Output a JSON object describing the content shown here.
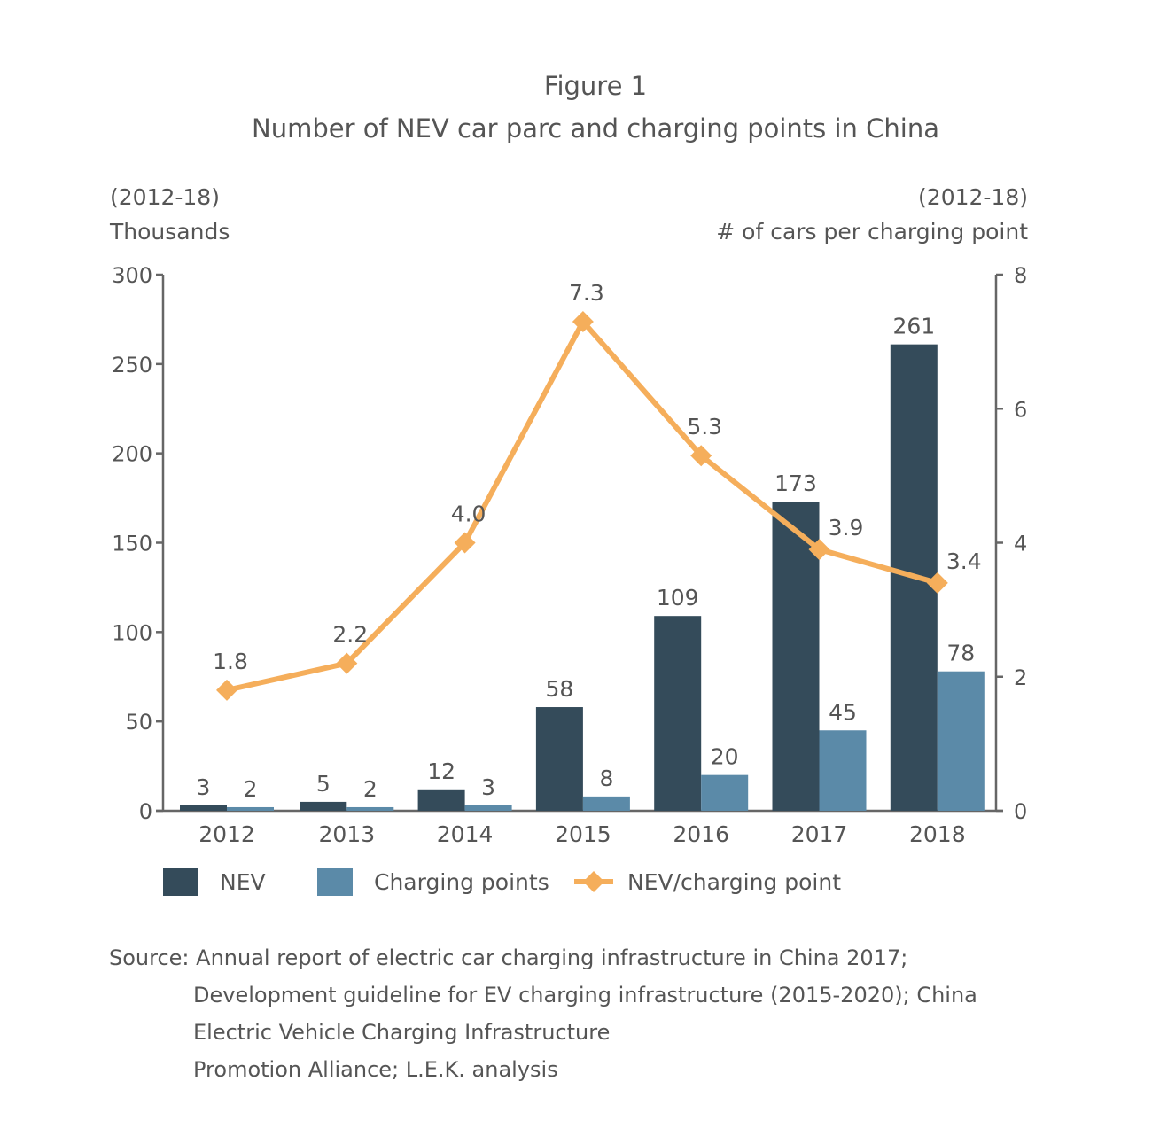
{
  "chart_data": {
    "type": "bar",
    "title": "Figure 1",
    "subtitle": "Number of NEV car parc and charging points in China",
    "left_axis": {
      "period": "(2012-18)",
      "label": "Thousands",
      "ylim": [
        0,
        300
      ],
      "ticks": [
        0,
        50,
        100,
        150,
        200,
        250,
        300
      ]
    },
    "right_axis": {
      "period": "(2012-18)",
      "label": "# of cars per charging point",
      "ylim": [
        0,
        8
      ],
      "ticks": [
        0,
        2,
        4,
        6,
        8
      ]
    },
    "categories": [
      "2012",
      "2013",
      "2014",
      "2015",
      "2016",
      "2017",
      "2018"
    ],
    "series": [
      {
        "name": "NEV",
        "type": "bar",
        "axis": "left",
        "color": "#344b5a",
        "values": [
          3,
          5,
          12,
          58,
          109,
          173,
          261
        ]
      },
      {
        "name": "Charging points",
        "type": "bar",
        "axis": "left",
        "color": "#5b8aa8",
        "values": [
          2,
          2,
          3,
          8,
          20,
          45,
          78
        ]
      },
      {
        "name": "NEV/charging point",
        "type": "line",
        "axis": "right",
        "color": "#f5ae5b",
        "marker": "diamond",
        "values": [
          1.8,
          2.2,
          4.0,
          7.3,
          5.3,
          3.9,
          3.4
        ],
        "labels": [
          "1.8",
          "2.2",
          "4.0",
          "7.3",
          "5.3",
          "3.9",
          "3.4"
        ]
      }
    ],
    "legend_placement": "bottom",
    "grid": false
  },
  "source": {
    "label": "Source:",
    "lines": [
      "Annual report of electric car charging infrastructure in China 2017;",
      "Development guideline for EV charging infrastructure (2015-2020); China",
      "Electric Vehicle Charging Infrastructure",
      "Promotion Alliance; L.E.K. analysis"
    ]
  }
}
